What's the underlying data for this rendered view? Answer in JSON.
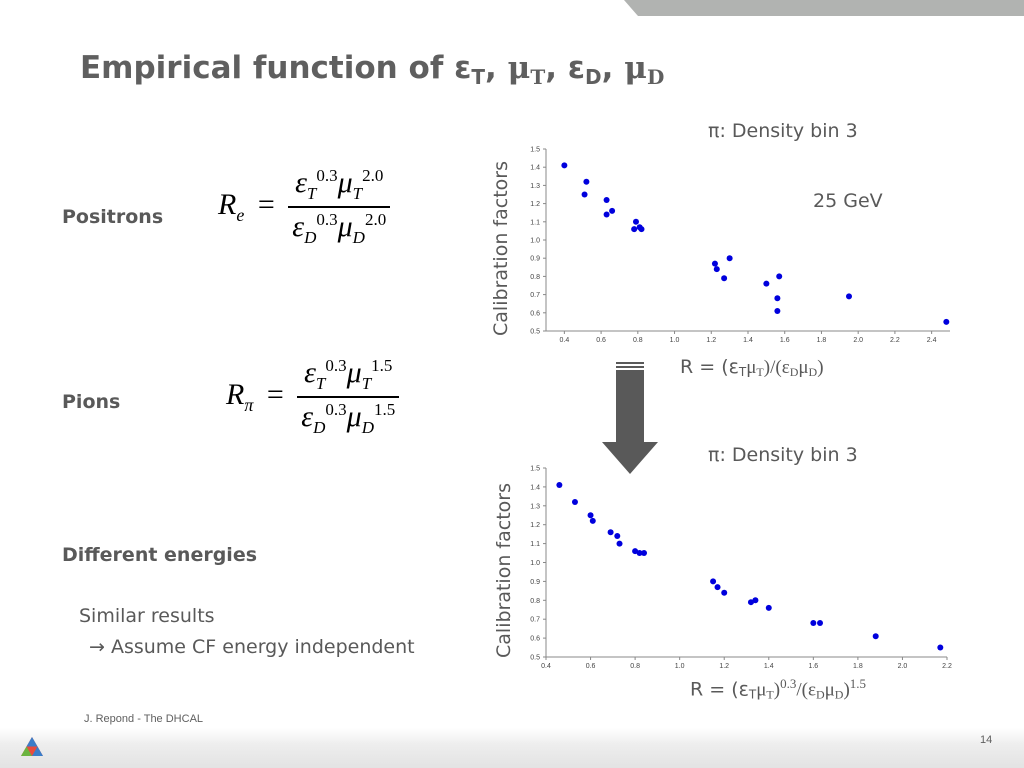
{
  "slide": {
    "title_main": "Empirical function of ε",
    "title_sub_T": "T",
    "title_mu": "μ",
    "title_sub_T2": "T",
    "title_eps2": "ε",
    "title_sub_D": "D",
    "title_mu2": "μ",
    "title_sub_D2": "D",
    "sep1": ", ",
    "sep2": ", ",
    "sep3": ", ",
    "positrons_label": "Positrons",
    "pions_label": "Pions",
    "different_energies_label": "Different energies",
    "similar_results": "Similar results",
    "assume_text": "→  Assume CF energy independent",
    "footer_author": "J. Repond - The DHCAL",
    "page_number": "14",
    "arrow_color": "#595959",
    "marker_color": "#0000dd"
  },
  "equations": {
    "positron": {
      "lhs": "R",
      "lhs_sub": "e",
      "eps_T_exp": "0.3",
      "mu_T_exp": "2.0",
      "eps_D_exp": "0.3",
      "mu_D_exp": "2.0"
    },
    "pion": {
      "lhs": "R",
      "lhs_sub": "π",
      "eps_T_exp": "0.3",
      "mu_T_exp": "1.5",
      "eps_D_exp": "0.3",
      "mu_D_exp": "1.5"
    }
  },
  "plot_captions": {
    "top_title": "π: Density bin 3",
    "top_energy": "25 GeV",
    "top_xlabel": "R = (ε",
    "bottom_title": "π: Density bin 3",
    "bottom_xlabel": "R = (ε",
    "ylabel": "Calibration factors"
  },
  "chart_data": [
    {
      "type": "scatter",
      "title": "π: Density bin 3",
      "annotation": "25 GeV",
      "xlabel": "R = (εTμT)/(εDμD)",
      "ylabel": "Calibration factors",
      "xlim": [
        0.3,
        2.5
      ],
      "ylim": [
        0.5,
        1.5
      ],
      "xticks": [
        "0.4",
        "0.6",
        "0.8",
        "1.0",
        "1.2",
        "1.4",
        "1.6",
        "1.8",
        "2.0",
        "2.2",
        "2.4"
      ],
      "yticks": [
        "0.5",
        "0.6",
        "0.7",
        "0.8",
        "0.9",
        "1.0",
        "1.1",
        "1.2",
        "1.3",
        "1.4",
        "1.5"
      ],
      "points": [
        [
          0.4,
          1.41
        ],
        [
          0.51,
          1.25
        ],
        [
          0.52,
          1.32
        ],
        [
          0.63,
          1.22
        ],
        [
          0.63,
          1.14
        ],
        [
          0.66,
          1.16
        ],
        [
          0.78,
          1.06
        ],
        [
          0.79,
          1.1
        ],
        [
          0.81,
          1.07
        ],
        [
          0.82,
          1.06
        ],
        [
          1.22,
          0.87
        ],
        [
          1.23,
          0.84
        ],
        [
          1.27,
          0.79
        ],
        [
          1.3,
          0.9
        ],
        [
          1.5,
          0.76
        ],
        [
          1.56,
          0.68
        ],
        [
          1.56,
          0.61
        ],
        [
          1.57,
          0.8
        ],
        [
          1.95,
          0.69
        ],
        [
          2.48,
          0.55
        ]
      ]
    },
    {
      "type": "scatter",
      "title": "π: Density bin 3",
      "xlabel": "R = (εTμT)0.3/(εDμD)1.5",
      "ylabel": "Calibration factors",
      "xlim": [
        0.4,
        2.2
      ],
      "ylim": [
        0.5,
        1.5
      ],
      "xticks": [
        "0.4",
        "0.6",
        "0.8",
        "1.0",
        "1.2",
        "1.4",
        "1.6",
        "1.8",
        "2.0",
        "2.2"
      ],
      "yticks": [
        "0.5",
        "0.6",
        "0.7",
        "0.8",
        "0.9",
        "1.0",
        "1.1",
        "1.2",
        "1.3",
        "1.4",
        "1.5"
      ],
      "points": [
        [
          0.46,
          1.41
        ],
        [
          0.53,
          1.32
        ],
        [
          0.6,
          1.25
        ],
        [
          0.61,
          1.22
        ],
        [
          0.69,
          1.16
        ],
        [
          0.72,
          1.14
        ],
        [
          0.73,
          1.1
        ],
        [
          0.8,
          1.06
        ],
        [
          0.82,
          1.05
        ],
        [
          0.84,
          1.05
        ],
        [
          1.15,
          0.9
        ],
        [
          1.17,
          0.87
        ],
        [
          1.2,
          0.84
        ],
        [
          1.32,
          0.79
        ],
        [
          1.34,
          0.8
        ],
        [
          1.4,
          0.76
        ],
        [
          1.6,
          0.68
        ],
        [
          1.63,
          0.68
        ],
        [
          1.88,
          0.61
        ],
        [
          2.17,
          0.55
        ]
      ]
    }
  ]
}
